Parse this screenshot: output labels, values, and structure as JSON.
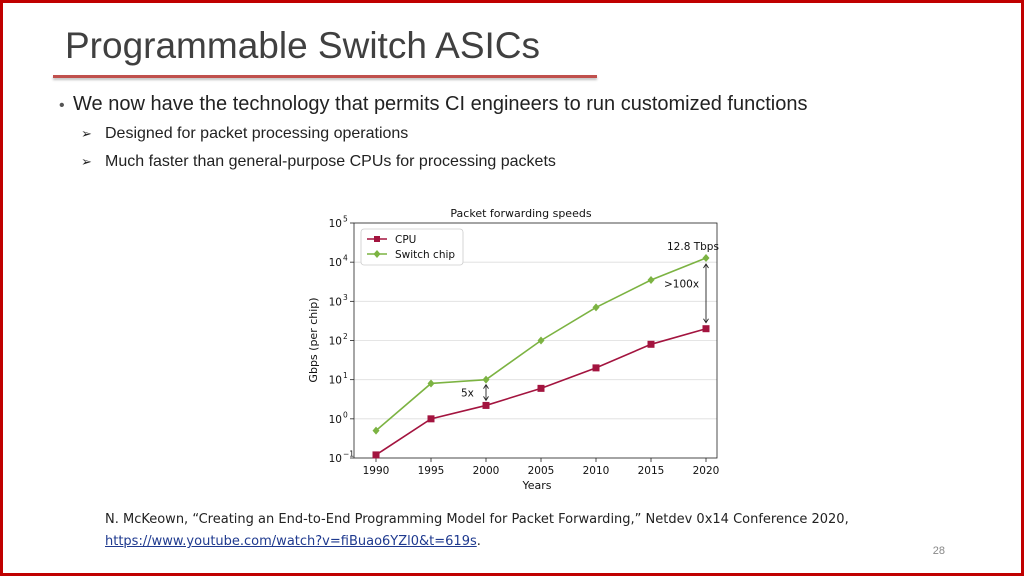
{
  "slide": {
    "title": "Programmable Switch ASICs",
    "bullet": "We now have the technology that permits CI engineers to run customized functions",
    "sub_bullets": [
      "Designed for packet processing operations",
      "Much faster than general-purpose CPUs for processing packets"
    ],
    "citation_text": "N. McKeown, “Creating an End-to-End Programming Model for Packet Forwarding,” Netdev 0x14 Conference 2020,",
    "citation_link": "https://www.youtube.com/watch?v=fiBuao6YZl0&t=619s",
    "citation_end": ".",
    "page_number": "28"
  },
  "colors": {
    "border": "#c00000",
    "title_rule": "#c0504d",
    "cpu": "#a3143f",
    "switch_chip": "#7cb342"
  },
  "icons": {
    "bullet": "bullet-dot-icon",
    "sub_bullet": "arrow-bullet-icon"
  },
  "chart_data": {
    "type": "line",
    "title": "Packet forwarding speeds",
    "xlabel": "Years",
    "ylabel": "Gbps (per chip)",
    "yscale": "log",
    "ylim": [
      0.1,
      100000
    ],
    "xlim": [
      1988,
      2021
    ],
    "x": [
      1990,
      1995,
      2000,
      2005,
      2010,
      2015,
      2020
    ],
    "xticks": [
      "1990",
      "1995",
      "2000",
      "2005",
      "2010",
      "2015",
      "2020"
    ],
    "yticks": [
      {
        "base": "10",
        "exp": "−1"
      },
      {
        "base": "10",
        "exp": "0"
      },
      {
        "base": "10",
        "exp": "1"
      },
      {
        "base": "10",
        "exp": "2"
      },
      {
        "base": "10",
        "exp": "3"
      },
      {
        "base": "10",
        "exp": "4"
      },
      {
        "base": "10",
        "exp": "5"
      }
    ],
    "grid": true,
    "legend_position": "top-left",
    "series": [
      {
        "name": "CPU",
        "marker": "square",
        "values": [
          0.12,
          1,
          2.2,
          6,
          20,
          80,
          200
        ]
      },
      {
        "name": "Switch chip",
        "marker": "diamond",
        "values": [
          0.5,
          8,
          10,
          100,
          700,
          3500,
          12800
        ]
      }
    ],
    "annotations": [
      {
        "text": "12.8 Tbps"
      },
      {
        "text": ">100x"
      },
      {
        "text": "5x"
      }
    ]
  }
}
